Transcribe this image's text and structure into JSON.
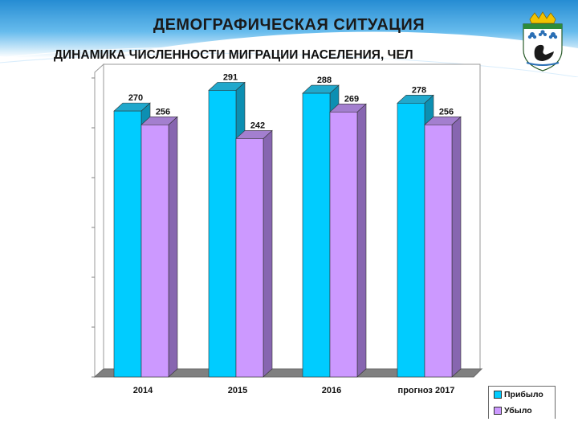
{
  "header": {
    "title": "ДЕМОГРАФИЧЕСКАЯ СИТУАЦИЯ",
    "subtitle": "ДИНАМИКА ЧИСЛЕННОСТИ МИГРАЦИИ НАСЕЛЕНИЯ, ЧЕЛ",
    "emblem_icon": "crown-swan-coat-of-arms-icon"
  },
  "colors": {
    "header_blue": "#1e8fd6",
    "arrived": "#00ccff",
    "left": "#cc99ff",
    "floor": "#808080"
  },
  "chart_data": {
    "type": "bar",
    "categories": [
      "2014",
      "2015",
      "2016",
      "прогноз 2017"
    ],
    "series": [
      {
        "name": "Прибыло",
        "values": [
          270,
          291,
          288,
          278
        ]
      },
      {
        "name": "Убыло",
        "values": [
          256,
          242,
          269,
          256
        ]
      }
    ],
    "ylim": [
      0,
      300
    ],
    "grid": false,
    "legend_position": "bottom-right",
    "data_labels": true
  }
}
